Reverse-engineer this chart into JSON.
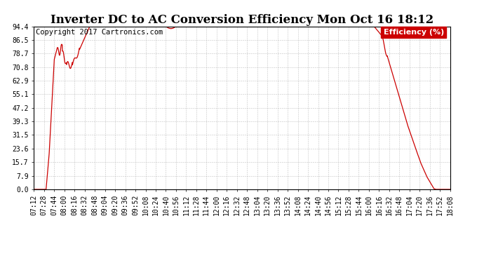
{
  "title": "Inverter DC to AC Conversion Efficiency Mon Oct 16 18:12",
  "copyright": "Copyright 2017 Cartronics.com",
  "legend_label": "Efficiency (%)",
  "legend_bg": "#cc0000",
  "legend_text_color": "#ffffff",
  "background_color": "#ffffff",
  "plot_bg": "#ffffff",
  "line_color": "#cc0000",
  "grid_color": "#aaaaaa",
  "yticks": [
    0.0,
    7.9,
    15.7,
    23.6,
    31.5,
    39.3,
    47.2,
    55.1,
    62.9,
    70.8,
    78.7,
    86.5,
    94.4
  ],
  "xtick_labels": [
    "07:12",
    "07:28",
    "07:44",
    "08:00",
    "08:16",
    "08:32",
    "08:48",
    "09:04",
    "09:20",
    "09:36",
    "09:52",
    "10:08",
    "10:24",
    "10:40",
    "10:56",
    "11:12",
    "11:28",
    "11:44",
    "12:00",
    "12:16",
    "12:32",
    "12:48",
    "13:04",
    "13:20",
    "13:36",
    "13:52",
    "14:08",
    "14:24",
    "14:40",
    "14:56",
    "15:12",
    "15:28",
    "15:44",
    "16:00",
    "16:16",
    "16:32",
    "16:48",
    "17:04",
    "17:20",
    "17:36",
    "17:52",
    "18:08"
  ],
  "title_fontsize": 12,
  "axis_fontsize": 7,
  "copyright_fontsize": 7.5
}
